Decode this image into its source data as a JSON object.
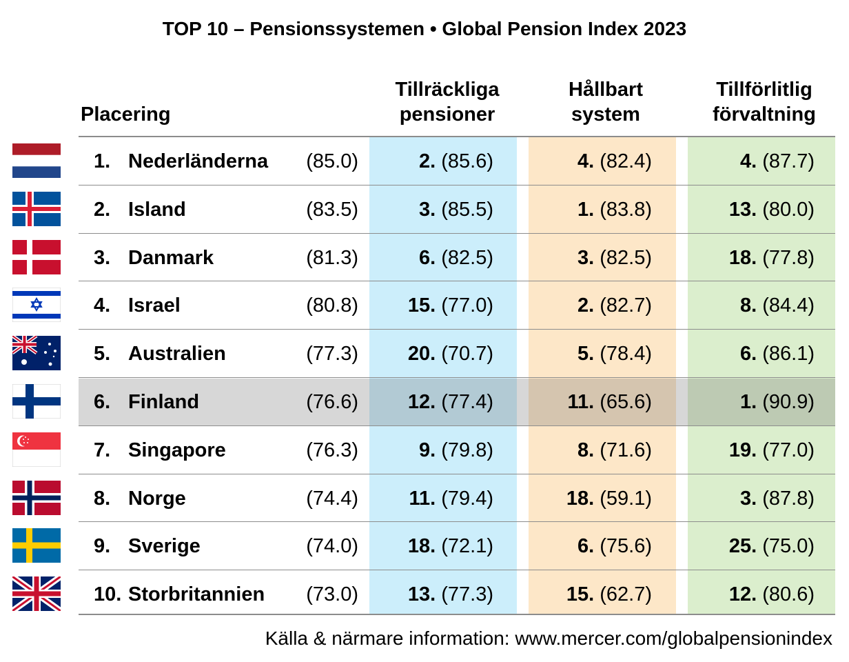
{
  "chart_data": {
    "type": "table",
    "title": "TOP 10 – Pensionssystemen  •  Global Pension Index 2023",
    "columns": {
      "rank": "Placering",
      "adequacy": [
        "Tillräckliga",
        "pensioner"
      ],
      "sustainability": [
        "Hållbart",
        "system"
      ],
      "integrity": [
        "Tillförlitlig",
        "förvaltning"
      ]
    },
    "colors": {
      "adequacy_bg": "#cceefb",
      "sustainability_bg": "#fde7c8",
      "integrity_bg": "#dbeecd",
      "highlight": "#d9d9d9"
    },
    "highlighted_row": 6,
    "rows": [
      {
        "rank": "1.",
        "country": "Nederländerna",
        "flag": "netherlands-flag",
        "score": "(85.0)",
        "adequacy": {
          "rank": "2.",
          "score": "(85.6)"
        },
        "sustainability": {
          "rank": "4.",
          "score": "(82.4)"
        },
        "integrity": {
          "rank": "4.",
          "score": "(87.7)"
        }
      },
      {
        "rank": "2.",
        "country": "Island",
        "flag": "iceland-flag",
        "score": "(83.5)",
        "adequacy": {
          "rank": "3.",
          "score": "(85.5)"
        },
        "sustainability": {
          "rank": "1.",
          "score": "(83.8)"
        },
        "integrity": {
          "rank": "13.",
          "score": "(80.0)"
        }
      },
      {
        "rank": "3.",
        "country": "Danmark",
        "flag": "denmark-flag",
        "score": "(81.3)",
        "adequacy": {
          "rank": "6.",
          "score": "(82.5)"
        },
        "sustainability": {
          "rank": "3.",
          "score": "(82.5)"
        },
        "integrity": {
          "rank": "18.",
          "score": "(77.8)"
        }
      },
      {
        "rank": "4.",
        "country": "Israel",
        "flag": "israel-flag",
        "score": "(80.8)",
        "adequacy": {
          "rank": "15.",
          "score": "(77.0)"
        },
        "sustainability": {
          "rank": "2.",
          "score": "(82.7)"
        },
        "integrity": {
          "rank": "8.",
          "score": "(84.4)"
        }
      },
      {
        "rank": "5.",
        "country": "Australien",
        "flag": "australia-flag",
        "score": "(77.3)",
        "adequacy": {
          "rank": "20.",
          "score": "(70.7)"
        },
        "sustainability": {
          "rank": "5.",
          "score": "(78.4)"
        },
        "integrity": {
          "rank": "6.",
          "score": "(86.1)"
        }
      },
      {
        "rank": "6.",
        "country": "Finland",
        "flag": "finland-flag",
        "score": "(76.6)",
        "adequacy": {
          "rank": "12.",
          "score": "(77.4)"
        },
        "sustainability": {
          "rank": "11.",
          "score": "(65.6)"
        },
        "integrity": {
          "rank": "1.",
          "score": "(90.9)"
        }
      },
      {
        "rank": "7.",
        "country": "Singapore",
        "flag": "singapore-flag",
        "score": "(76.3)",
        "adequacy": {
          "rank": "9.",
          "score": "(79.8)"
        },
        "sustainability": {
          "rank": "8.",
          "score": "(71.6)"
        },
        "integrity": {
          "rank": "19.",
          "score": "(77.0)"
        }
      },
      {
        "rank": "8.",
        "country": "Norge",
        "flag": "norway-flag",
        "score": "(74.4)",
        "adequacy": {
          "rank": "11.",
          "score": "(79.4)"
        },
        "sustainability": {
          "rank": "18.",
          "score": "(59.1)"
        },
        "integrity": {
          "rank": "3.",
          "score": "(87.8)"
        }
      },
      {
        "rank": "9.",
        "country": "Sverige",
        "flag": "sweden-flag",
        "score": "(74.0)",
        "adequacy": {
          "rank": "18.",
          "score": "(72.1)"
        },
        "sustainability": {
          "rank": "6.",
          "score": "(75.6)"
        },
        "integrity": {
          "rank": "25.",
          "score": "(75.0)"
        }
      },
      {
        "rank": "10.",
        "country": "Storbritannien",
        "flag": "uk-flag",
        "score": "(73.0)",
        "adequacy": {
          "rank": "13.",
          "score": "(77.3)"
        },
        "sustainability": {
          "rank": "15.",
          "score": "(62.7)"
        },
        "integrity": {
          "rank": "12.",
          "score": "(80.6)"
        }
      }
    ],
    "source": "Källa & närmare information: www.mercer.com/globalpensionindex"
  }
}
